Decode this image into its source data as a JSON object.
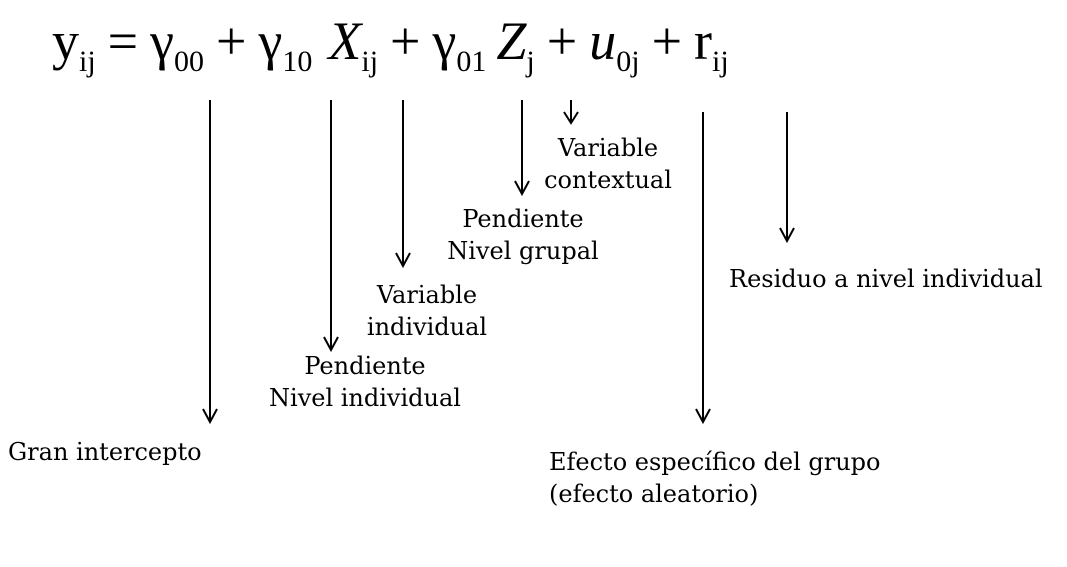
{
  "equation": {
    "terms": [
      {
        "base": "y",
        "sub": "ij",
        "italic": false
      },
      {
        "op": "="
      },
      {
        "base": "γ",
        "sub": "00",
        "italic": false
      },
      {
        "op": "+"
      },
      {
        "base": "γ",
        "sub": "10",
        "italic": false
      },
      {
        "base": "X",
        "sub": "ij",
        "italic": true
      },
      {
        "op": "+"
      },
      {
        "base": "γ",
        "sub": "01",
        "italic": false
      },
      {
        "base": "Z",
        "sub": "j",
        "italic": true
      },
      {
        "op": "+"
      },
      {
        "base": "u",
        "sub": "0j",
        "italic": true
      },
      {
        "op": "+"
      },
      {
        "base": "r",
        "sub": "ij",
        "italic": false
      }
    ]
  },
  "labels": {
    "gran_intercepto": [
      "Gran intercepto"
    ],
    "pendiente_individual": [
      "Pendiente",
      "Nivel individual"
    ],
    "variable_individual": [
      "Variable",
      "individual"
    ],
    "pendiente_grupal": [
      "Pendiente",
      "Nivel grupal"
    ],
    "variable_contextual": [
      "Variable",
      "contextual"
    ],
    "efecto_grupo": [
      "Efecto específico del grupo",
      "(efecto aleatorio)"
    ],
    "residuo": [
      "Residuo a nivel individual"
    ]
  }
}
